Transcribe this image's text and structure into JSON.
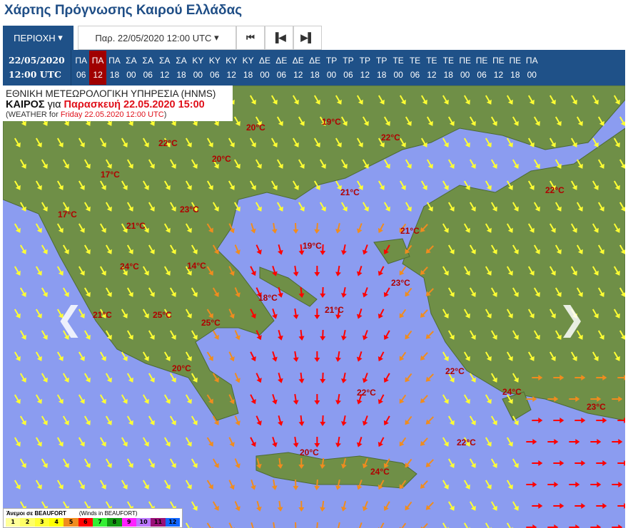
{
  "title": "Χάρτης Πρόγνωσης Καιρού Ελλάδας",
  "nav": {
    "region_label": "ΠΕΡΙΟΧΗ",
    "date_select": "Παρ. 22/05/2020 12:00 UTC",
    "first_icon": "skip-first",
    "prev_icon": "step-back",
    "next_icon": "step-forward"
  },
  "timeline": {
    "date": "22/05/2020",
    "time": "12:00 UTC",
    "selected_index": 1,
    "slots": [
      [
        "ΠΑ",
        "06"
      ],
      [
        "ΠΑ",
        "12"
      ],
      [
        "ΠΑ",
        "18"
      ],
      [
        "ΣΑ",
        "00"
      ],
      [
        "ΣΑ",
        "06"
      ],
      [
        "ΣΑ",
        "12"
      ],
      [
        "ΣΑ",
        "18"
      ],
      [
        "ΚΥ",
        "00"
      ],
      [
        "ΚΥ",
        "06"
      ],
      [
        "ΚΥ",
        "12"
      ],
      [
        "ΚΥ",
        "18"
      ],
      [
        "ΔΕ",
        "00"
      ],
      [
        "ΔΕ",
        "06"
      ],
      [
        "ΔΕ",
        "12"
      ],
      [
        "ΔΕ",
        "18"
      ],
      [
        "ΤΡ",
        "00"
      ],
      [
        "ΤΡ",
        "06"
      ],
      [
        "ΤΡ",
        "12"
      ],
      [
        "ΤΡ",
        "18"
      ],
      [
        "ΤΕ",
        "00"
      ],
      [
        "ΤΕ",
        "06"
      ],
      [
        "ΤΕ",
        "12"
      ],
      [
        "ΤΕ",
        "18"
      ],
      [
        "ΠΕ",
        "00"
      ],
      [
        "ΠΕ",
        "06"
      ],
      [
        "ΠΕ",
        "12"
      ],
      [
        "ΠΕ",
        "18"
      ],
      [
        "ΠΑ",
        "00"
      ]
    ]
  },
  "info": {
    "agency": "ΕΘΝΙΚΗ ΜΕΤΕΩΡΟΛΟΓΙΚΗ ΥΠΗΡΕΣΙΑ (HNMS)",
    "weather_word": "ΚΑΙΡΟΣ",
    "for_word": "για",
    "local_time": "Παρασκευή 22.05.2020 15:00",
    "en_prefix": "(WEATHER for",
    "en_time": "Friday 22.05.2020 12:00 UTC",
    ")": ")"
  },
  "temperatures": [
    "20°C",
    "19°C",
    "22°C",
    "22°C",
    "20°C",
    "17°C",
    "21°C",
    "22°C",
    "23°C",
    "17°C",
    "21°C",
    "21°C",
    "19°C",
    "24°C",
    "14°C",
    "23°C",
    "18°C",
    "21°C",
    "25°C",
    "21°C",
    "25°C",
    "20°C",
    "22°C",
    "22°C",
    "24°C",
    "23°C",
    "22°C",
    "20°C",
    "24°C"
  ],
  "legend": {
    "title": "Άνεμοι σε BEAUFORT",
    "subtitle": "(Winds in BEAUFORT)",
    "scale": [
      {
        "v": "1",
        "c": "#ffff99"
      },
      {
        "v": "2",
        "c": "#ffff66"
      },
      {
        "v": "3",
        "c": "#ffff33"
      },
      {
        "v": "4",
        "c": "#ffff00"
      },
      {
        "v": "5",
        "c": "#f08c1e"
      },
      {
        "v": "6",
        "c": "#ff0000"
      },
      {
        "v": "7",
        "c": "#33ee33"
      },
      {
        "v": "8",
        "c": "#119911"
      },
      {
        "v": "9",
        "c": "#ff22ff"
      },
      {
        "v": "10",
        "c": "#bb77ff"
      },
      {
        "v": "11",
        "c": "#991177"
      },
      {
        "v": "12",
        "c": "#1166ff"
      }
    ]
  },
  "colors": {
    "sea": "#8b9cf0",
    "land": "#6f8f47",
    "header": "#1f5188",
    "selected": "#a00000"
  }
}
